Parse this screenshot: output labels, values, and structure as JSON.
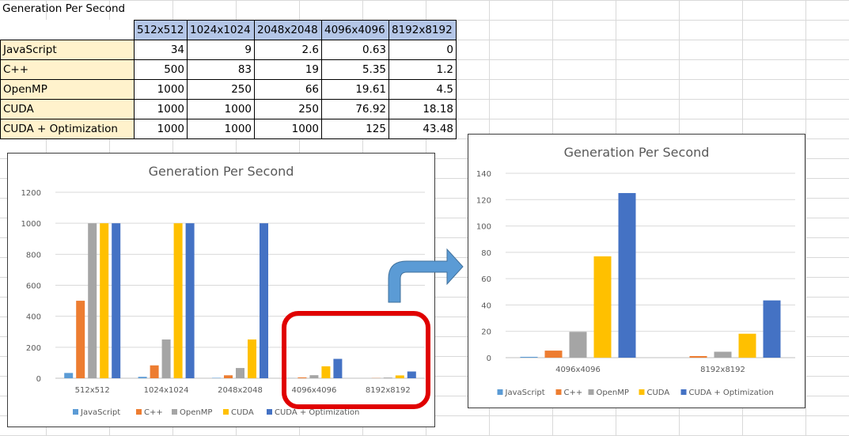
{
  "sheet_title": "Generation Per Second",
  "table": {
    "columns": [
      "512x512",
      "1024x1024",
      "2048x2048",
      "4096x4096",
      "8192x8192"
    ],
    "rows": [
      {
        "label": "JavaScript",
        "values": [
          "34",
          "9",
          "2.6",
          "0.63",
          "0"
        ]
      },
      {
        "label": "C++",
        "values": [
          "500",
          "83",
          "19",
          "5.35",
          "1.2"
        ]
      },
      {
        "label": "OpenMP",
        "values": [
          "1000",
          "250",
          "66",
          "19.61",
          "4.5"
        ]
      },
      {
        "label": "CUDA",
        "values": [
          "1000",
          "1000",
          "250",
          "76.92",
          "18.18"
        ]
      },
      {
        "label": "CUDA + Optimization",
        "values": [
          "1000",
          "1000",
          "1000",
          "125",
          "43.48"
        ]
      }
    ]
  },
  "colors": {
    "JavaScript": "#5b9bd5",
    "C++": "#ed7d31",
    "OpenMP": "#a5a5a5",
    "CUDA": "#ffc000",
    "CUDA + Optimization": "#4472c4",
    "highlight": "#e00000",
    "arrow": "#5b9bd5"
  },
  "chart_data": [
    {
      "type": "bar",
      "title": "Generation Per Second",
      "categories": [
        "512x512",
        "1024x1024",
        "2048x2048",
        "4096x4096",
        "8192x8192"
      ],
      "series": [
        {
          "name": "JavaScript",
          "values": [
            34,
            9,
            2.6,
            0.63,
            0
          ]
        },
        {
          "name": "C++",
          "values": [
            500,
            83,
            19,
            5.35,
            1.2
          ]
        },
        {
          "name": "OpenMP",
          "values": [
            1000,
            250,
            66,
            19.61,
            4.5
          ]
        },
        {
          "name": "CUDA",
          "values": [
            1000,
            1000,
            250,
            76.92,
            18.18
          ]
        },
        {
          "name": "CUDA + Optimization",
          "values": [
            1000,
            1000,
            1000,
            125,
            43.48
          ]
        }
      ],
      "ylim": [
        0,
        1200
      ],
      "yticks": [
        0,
        200,
        400,
        600,
        800,
        1000,
        1200
      ],
      "grid": true,
      "legend": "bottom"
    },
    {
      "type": "bar",
      "title": "Generation Per Second",
      "categories": [
        "4096x4096",
        "8192x8192"
      ],
      "series": [
        {
          "name": "JavaScript",
          "values": [
            0.63,
            0
          ]
        },
        {
          "name": "C++",
          "values": [
            5.35,
            1.2
          ]
        },
        {
          "name": "OpenMP",
          "values": [
            19.61,
            4.5
          ]
        },
        {
          "name": "CUDA",
          "values": [
            76.92,
            18.18
          ]
        },
        {
          "name": "CUDA + Optimization",
          "values": [
            125,
            43.48
          ]
        }
      ],
      "ylim": [
        0,
        140
      ],
      "yticks": [
        0,
        20,
        40,
        60,
        80,
        100,
        120,
        140
      ],
      "grid": true,
      "legend": "bottom"
    }
  ]
}
